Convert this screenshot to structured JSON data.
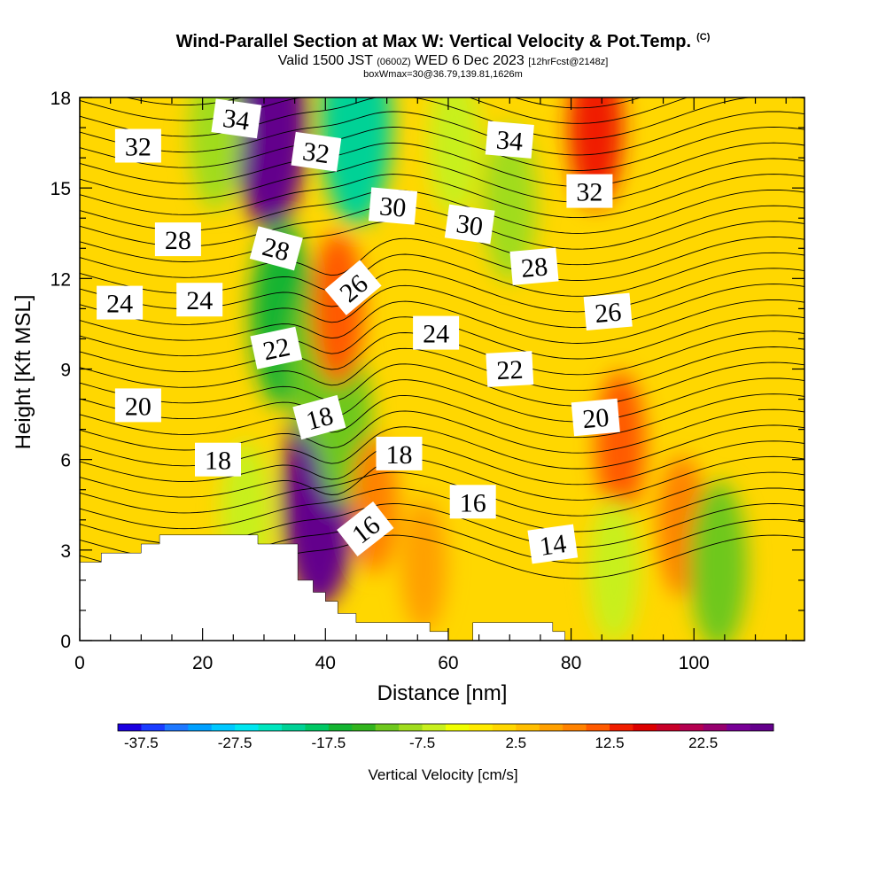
{
  "header": {
    "title": "Wind-Parallel Section at Max W: Vertical Velocity & Pot.Temp.",
    "copyright": "(C)",
    "valid_prefix": "Valid 1500 JST",
    "valid_utc": "(0600Z)",
    "valid_date": "WED 6 Dec 2023",
    "forecast": "[12hrFcst@2148z]",
    "box_info": "boxWmax=30@36.79,139.81,1626m"
  },
  "chart_data": {
    "type": "heatmap",
    "xlabel": "Distance [nm]",
    "ylabel": "Height [Kft MSL]",
    "xlim": [
      0,
      118
    ],
    "ylim": [
      0,
      18
    ],
    "x_ticks": [
      0,
      20,
      40,
      60,
      80,
      100
    ],
    "y_ticks": [
      0,
      3,
      6,
      9,
      12,
      15,
      18
    ],
    "grid": false,
    "colorbar": {
      "title": "Vertical Velocity [cm/s]",
      "placement": "bottom",
      "range": [
        -40,
        30
      ],
      "step": 2.5,
      "tick_labels": [
        "-37.5",
        "-27.5",
        "-17.5",
        "-7.5",
        "2.5",
        "12.5",
        "22.5"
      ],
      "colors": [
        "#1a00e0",
        "#1a3cff",
        "#1e78ff",
        "#00a0ff",
        "#00c8ff",
        "#00e6f0",
        "#00e6be",
        "#00d296",
        "#00c864",
        "#14b432",
        "#32b41e",
        "#6ec81e",
        "#a0dc1e",
        "#c8f01e",
        "#f0ff00",
        "#ffeb00",
        "#ffd700",
        "#ffbe00",
        "#ffa000",
        "#ff8200",
        "#ff5a00",
        "#f01e00",
        "#dc0000",
        "#c80028",
        "#b40050",
        "#96006e",
        "#780096",
        "#64008c"
      ]
    },
    "background_value_cm_s": 2,
    "vertical_velocity_features": [
      {
        "x": 31,
        "y": 17.2,
        "value": 28
      },
      {
        "x": 39,
        "y": 4.7,
        "value": 28
      },
      {
        "x": 33,
        "y": 10.8,
        "value": -16
      },
      {
        "x": 39,
        "y": 9.2,
        "value": -12
      },
      {
        "x": 45,
        "y": 17.2,
        "value": -22
      },
      {
        "x": 43,
        "y": 7.2,
        "value": -11
      },
      {
        "x": 70,
        "y": 14.5,
        "value": -9
      },
      {
        "x": 84,
        "y": 17,
        "value": 13
      },
      {
        "x": 88,
        "y": 6.5,
        "value": 10
      },
      {
        "x": 98,
        "y": 3.8,
        "value": 9
      },
      {
        "x": 104,
        "y": 2.5,
        "value": -12
      },
      {
        "x": 87,
        "y": 2.3,
        "value": -6
      },
      {
        "x": 42,
        "y": 11,
        "value": 12
      },
      {
        "x": 48,
        "y": 4.5,
        "value": 8
      },
      {
        "x": 56,
        "y": 2.5,
        "value": 7
      },
      {
        "x": 22,
        "y": 16.8,
        "value": -8
      },
      {
        "x": 61,
        "y": 16.5,
        "value": -7
      },
      {
        "x": 27,
        "y": 4.2,
        "value": -6
      }
    ],
    "terrain_kft": [
      [
        0,
        0
      ],
      [
        0,
        2.6
      ],
      [
        3.5,
        2.6
      ],
      [
        3.5,
        2.9
      ],
      [
        10,
        2.9
      ],
      [
        10,
        3.2
      ],
      [
        13,
        3.2
      ],
      [
        13,
        3.5
      ],
      [
        29,
        3.5
      ],
      [
        29,
        3.2
      ],
      [
        35.5,
        3.2
      ],
      [
        35.5,
        2.0
      ],
      [
        38,
        2.0
      ],
      [
        38,
        1.6
      ],
      [
        40,
        1.6
      ],
      [
        40,
        1.3
      ],
      [
        42,
        1.3
      ],
      [
        42,
        0.9
      ],
      [
        45,
        0.9
      ],
      [
        45,
        0.6
      ],
      [
        57,
        0.6
      ],
      [
        57,
        0.3
      ],
      [
        60,
        0.3
      ],
      [
        60,
        0
      ],
      [
        64,
        0
      ],
      [
        64,
        0.6
      ],
      [
        77,
        0.6
      ],
      [
        77,
        0.3
      ],
      [
        79,
        0.3
      ],
      [
        79,
        0
      ],
      [
        81,
        0
      ],
      [
        81,
        0
      ]
    ],
    "theta_contours_C": [
      14,
      16,
      18,
      20,
      22,
      24,
      26,
      28,
      30,
      32,
      34
    ],
    "contour_labels": [
      {
        "text": "34",
        "x": 25.5,
        "y": 17.3,
        "rot": 8
      },
      {
        "text": "32",
        "x": 9.5,
        "y": 16.4,
        "rot": 0
      },
      {
        "text": "32",
        "x": 38.5,
        "y": 16.2,
        "rot": 8
      },
      {
        "text": "34",
        "x": 70,
        "y": 16.6,
        "rot": 5
      },
      {
        "text": "32",
        "x": 83,
        "y": 14.9,
        "rot": 0
      },
      {
        "text": "30",
        "x": 51,
        "y": 14.4,
        "rot": 5
      },
      {
        "text": "30",
        "x": 63.5,
        "y": 13.8,
        "rot": 8
      },
      {
        "text": "28",
        "x": 16,
        "y": 13.3,
        "rot": 0
      },
      {
        "text": "28",
        "x": 32,
        "y": 13.0,
        "rot": 15
      },
      {
        "text": "28",
        "x": 74,
        "y": 12.4,
        "rot": -5
      },
      {
        "text": "26",
        "x": 44.5,
        "y": 11.7,
        "rot": -40
      },
      {
        "text": "26",
        "x": 86,
        "y": 10.9,
        "rot": -5
      },
      {
        "text": "24",
        "x": 6.5,
        "y": 11.2,
        "rot": 0
      },
      {
        "text": "24",
        "x": 19.5,
        "y": 11.3,
        "rot": 0
      },
      {
        "text": "24",
        "x": 58,
        "y": 10.2,
        "rot": 0
      },
      {
        "text": "22",
        "x": 32,
        "y": 9.7,
        "rot": -12
      },
      {
        "text": "22",
        "x": 70,
        "y": 9.0,
        "rot": -3
      },
      {
        "text": "20",
        "x": 9.5,
        "y": 7.8,
        "rot": 0
      },
      {
        "text": "20",
        "x": 84,
        "y": 7.4,
        "rot": -5
      },
      {
        "text": "18",
        "x": 39,
        "y": 7.4,
        "rot": -15
      },
      {
        "text": "18",
        "x": 22.5,
        "y": 6.0,
        "rot": 0
      },
      {
        "text": "18",
        "x": 52,
        "y": 6.2,
        "rot": 0
      },
      {
        "text": "16",
        "x": 64,
        "y": 4.6,
        "rot": 0
      },
      {
        "text": "16",
        "x": 46.5,
        "y": 3.7,
        "rot": -38
      },
      {
        "text": "14",
        "x": 77,
        "y": 3.2,
        "rot": -8
      }
    ]
  }
}
